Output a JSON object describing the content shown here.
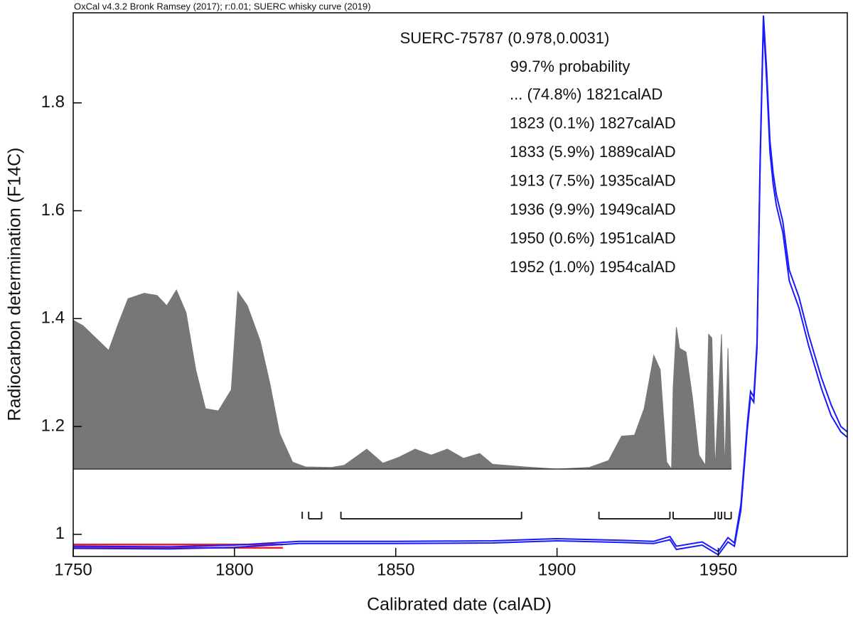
{
  "chart_data": {
    "type": "line",
    "header": "OxCal v4.3.2 Bronk Ramsey (2017); r:0.01; SUERC whisky curve (2019)",
    "title": "SUERC-75787 (0.978,0.0031)",
    "subtitle": "99.7% probability",
    "range_labels": [
      "... (74.8%) 1821calAD",
      "1823 (0.1%) 1827calAD",
      "1833 (5.9%) 1889calAD",
      "1913 (7.5%) 1935calAD",
      "1936 (9.9%) 1949calAD",
      "1950 (0.6%) 1951calAD",
      "1952 (1.0%) 1954calAD"
    ],
    "ranges": [
      [
        null,
        1821
      ],
      [
        1823,
        1827
      ],
      [
        1833,
        1889
      ],
      [
        1913,
        1935
      ],
      [
        1936,
        1949
      ],
      [
        1950,
        1951
      ],
      [
        1952,
        1954
      ]
    ],
    "xlabel": "Calibrated date (calAD)",
    "ylabel": "Radiocarbon determination (F14C)",
    "xlim": [
      1750,
      1990
    ],
    "ylim": [
      0.959,
      1.967
    ],
    "xticks": [
      1750,
      1800,
      1850,
      1900,
      1950
    ],
    "yticks": [
      1,
      1.2,
      1.4,
      1.6,
      1.8
    ],
    "x": [
      1750,
      1780,
      1800,
      1820,
      1850,
      1880,
      1900,
      1920,
      1930,
      1935,
      1937,
      1945,
      1950,
      1953,
      1955,
      1957,
      1959,
      1960,
      1961,
      1962,
      1963,
      1964,
      1965,
      1966,
      1967,
      1968,
      1970,
      1972,
      1975,
      1978,
      1982,
      1985,
      1988,
      1990
    ],
    "series": [
      {
        "color": "#1a1aff",
        "values": [
          0.978,
          0.977,
          0.98,
          0.987,
          0.987,
          0.988,
          0.992,
          0.989,
          0.987,
          0.996,
          0.978,
          0.986,
          0.968,
          0.994,
          0.984,
          1.055,
          1.205,
          1.265,
          1.255,
          1.355,
          1.705,
          1.962,
          1.86,
          1.73,
          1.67,
          1.63,
          1.58,
          1.49,
          1.44,
          1.37,
          1.29,
          1.24,
          1.2,
          1.19
        ]
      },
      {
        "color": "#1a1aff",
        "values": [
          0.974,
          0.973,
          0.976,
          0.983,
          0.983,
          0.984,
          0.988,
          0.985,
          0.983,
          0.99,
          0.972,
          0.98,
          0.962,
          0.986,
          0.978,
          1.045,
          1.195,
          1.255,
          1.245,
          1.345,
          1.695,
          1.95,
          1.84,
          1.71,
          1.65,
          1.61,
          1.56,
          1.47,
          1.42,
          1.35,
          1.27,
          1.22,
          1.19,
          1.18
        ]
      }
    ],
    "measurement": {
      "value": 0.978,
      "error": 0.0031,
      "x": [
        1750,
        1815
      ],
      "color": "#e8202a"
    },
    "density": {
      "color": "#777777",
      "base": 1.121,
      "x": [
        1750,
        1753,
        1757,
        1761,
        1764,
        1767,
        1772,
        1776,
        1779,
        1782,
        1785,
        1788,
        1791,
        1795,
        1799,
        1801,
        1804,
        1808,
        1811,
        1814,
        1818,
        1822,
        1830,
        1834,
        1841,
        1846,
        1851,
        1856,
        1861,
        1866,
        1871,
        1876,
        1880,
        1890,
        1900,
        1910,
        1916,
        1920,
        1924,
        1927,
        1930,
        1932,
        1934,
        1935.5,
        1936,
        1937,
        1938,
        1940,
        1942,
        1944,
        1946,
        1947,
        1948,
        1949,
        1951,
        1952,
        1953,
        1954
      ],
      "values": [
        1.397,
        1.387,
        1.364,
        1.341,
        1.391,
        1.437,
        1.447,
        1.443,
        1.424,
        1.453,
        1.411,
        1.305,
        1.233,
        1.229,
        1.268,
        1.45,
        1.424,
        1.358,
        1.279,
        1.187,
        1.134,
        1.125,
        1.124,
        1.128,
        1.158,
        1.132,
        1.143,
        1.158,
        1.147,
        1.158,
        1.141,
        1.15,
        1.13,
        1.125,
        1.121,
        1.124,
        1.137,
        1.182,
        1.184,
        1.233,
        1.332,
        1.305,
        1.134,
        1.121,
        1.272,
        1.384,
        1.345,
        1.338,
        1.253,
        1.147,
        1.128,
        1.371,
        1.364,
        1.121,
        1.371,
        1.121,
        1.345,
        1.121
      ]
    }
  }
}
